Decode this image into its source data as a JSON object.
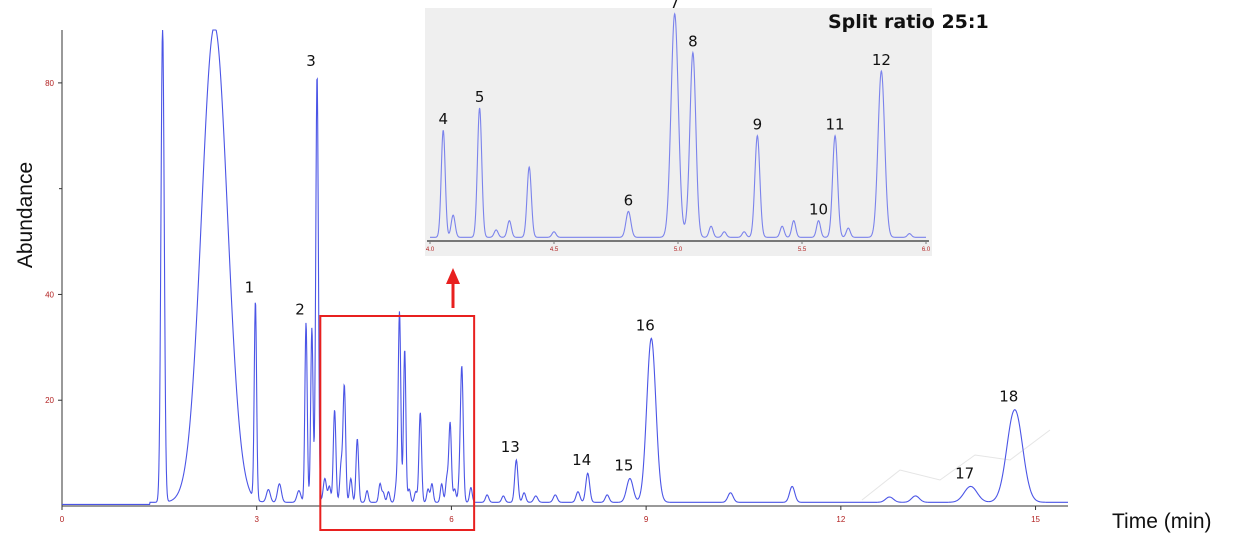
{
  "chart_data": {
    "type": "line",
    "ylabel": "Abundance",
    "xlabel": "Time (min)",
    "xlim": [
      0,
      15.5
    ],
    "ylim": [
      0,
      90
    ],
    "x_ticks": [
      "0",
      "3",
      "6",
      "9",
      "12",
      "15"
    ],
    "y_ticks": [
      "20",
      "40",
      "80"
    ],
    "annotation": "Split ratio 25:1",
    "line_color": "#4b55e6",
    "highlight_color": "#e8201f",
    "highlight_range": [
      3.98,
      6.35
    ],
    "baseline": 0.7,
    "peaks": [
      {
        "t": 1.55,
        "h": 90,
        "w": 0.025
      },
      {
        "t": 2.35,
        "h": 90,
        "w": 0.2
      },
      {
        "t": 2.98,
        "h": 37.5,
        "w": 0.018,
        "label": "1"
      },
      {
        "t": 3.18,
        "h": 2.4,
        "w": 0.03
      },
      {
        "t": 3.35,
        "h": 3.5,
        "w": 0.03
      },
      {
        "t": 3.65,
        "h": 2.2,
        "w": 0.03
      },
      {
        "t": 3.76,
        "h": 34,
        "w": 0.018,
        "label": "2"
      },
      {
        "t": 3.85,
        "h": 33,
        "w": 0.018
      },
      {
        "t": 3.93,
        "h": 81,
        "w": 0.02,
        "label": "3"
      },
      {
        "t": 4.05,
        "h": 4.5,
        "w": 0.025
      },
      {
        "t": 4.12,
        "h": 3,
        "w": 0.02
      },
      {
        "t": 4.2,
        "h": 17.5,
        "w": 0.02
      },
      {
        "t": 4.3,
        "h": 7,
        "w": 0.02
      },
      {
        "t": 4.35,
        "h": 22,
        "w": 0.02
      },
      {
        "t": 4.45,
        "h": 4.5,
        "w": 0.02
      },
      {
        "t": 4.55,
        "h": 12,
        "w": 0.02
      },
      {
        "t": 4.7,
        "h": 2.2,
        "w": 0.02
      },
      {
        "t": 4.9,
        "h": 3.5,
        "w": 0.02
      },
      {
        "t": 4.95,
        "h": 1.8,
        "w": 0.02
      },
      {
        "t": 5.03,
        "h": 2,
        "w": 0.02
      },
      {
        "t": 5.15,
        "h": 3,
        "w": 0.02
      },
      {
        "t": 5.2,
        "h": 36,
        "w": 0.02
      },
      {
        "t": 5.28,
        "h": 29,
        "w": 0.018
      },
      {
        "t": 5.35,
        "h": 2.5,
        "w": 0.02
      },
      {
        "t": 5.45,
        "h": 2,
        "w": 0.02
      },
      {
        "t": 5.52,
        "h": 17,
        "w": 0.02
      },
      {
        "t": 5.64,
        "h": 2.5,
        "w": 0.02
      },
      {
        "t": 5.7,
        "h": 3.5,
        "w": 0.02
      },
      {
        "t": 5.85,
        "h": 3.5,
        "w": 0.02
      },
      {
        "t": 5.93,
        "h": 4.5,
        "w": 0.02
      },
      {
        "t": 5.98,
        "h": 15,
        "w": 0.02
      },
      {
        "t": 6.05,
        "h": 2.5,
        "w": 0.02
      },
      {
        "t": 6.12,
        "h": 2.3,
        "w": 0.02
      },
      {
        "t": 6.16,
        "h": 25.5,
        "w": 0.022
      },
      {
        "t": 6.3,
        "h": 2.8,
        "w": 0.02
      },
      {
        "t": 6.55,
        "h": 1.4,
        "w": 0.025
      },
      {
        "t": 6.8,
        "h": 1.2,
        "w": 0.025
      },
      {
        "t": 7.0,
        "h": 8,
        "w": 0.025,
        "label": "13"
      },
      {
        "t": 7.12,
        "h": 1.8,
        "w": 0.025
      },
      {
        "t": 7.3,
        "h": 1.2,
        "w": 0.03
      },
      {
        "t": 7.6,
        "h": 1.4,
        "w": 0.03
      },
      {
        "t": 7.95,
        "h": 2,
        "w": 0.03
      },
      {
        "t": 8.1,
        "h": 5.5,
        "w": 0.03,
        "label": "14"
      },
      {
        "t": 8.4,
        "h": 1.4,
        "w": 0.03
      },
      {
        "t": 8.75,
        "h": 4.5,
        "w": 0.05,
        "label": "15"
      },
      {
        "t": 9.08,
        "h": 31,
        "w": 0.07,
        "label": "16"
      },
      {
        "t": 10.3,
        "h": 1.8,
        "w": 0.04
      },
      {
        "t": 11.25,
        "h": 3,
        "w": 0.04
      },
      {
        "t": 12.75,
        "h": 1,
        "w": 0.06
      },
      {
        "t": 13.15,
        "h": 1.2,
        "w": 0.06
      },
      {
        "t": 14.0,
        "h": 3,
        "w": 0.1,
        "label": "17"
      },
      {
        "t": 14.68,
        "h": 17.5,
        "w": 0.12,
        "label": "18"
      }
    ],
    "inset": {
      "x_ticks": [
        "4.0",
        "4.5",
        "5.0",
        "5.5",
        "6.0"
      ],
      "xlim": [
        4.0,
        6.4
      ],
      "baseline": 6,
      "background": "#efefef",
      "peaks": [
        {
          "t": 4.08,
          "h": 58,
          "w": 0.012,
          "label": "4"
        },
        {
          "t": 4.14,
          "h": 12,
          "w": 0.012
        },
        {
          "t": 4.3,
          "h": 70,
          "w": 0.013,
          "label": "5"
        },
        {
          "t": 4.4,
          "h": 4,
          "w": 0.012
        },
        {
          "t": 4.48,
          "h": 9,
          "w": 0.012
        },
        {
          "t": 4.6,
          "h": 38,
          "w": 0.013
        },
        {
          "t": 4.75,
          "h": 3,
          "w": 0.012
        },
        {
          "t": 5.2,
          "h": 14,
          "w": 0.015,
          "label": "6"
        },
        {
          "t": 5.48,
          "h": 121,
          "w": 0.022,
          "label": "7"
        },
        {
          "t": 5.55,
          "h": 3,
          "w": 0.012
        },
        {
          "t": 5.59,
          "h": 100,
          "w": 0.018,
          "label": "8"
        },
        {
          "t": 5.7,
          "h": 6,
          "w": 0.012
        },
        {
          "t": 5.78,
          "h": 3,
          "w": 0.012
        },
        {
          "t": 5.9,
          "h": 3,
          "w": 0.012
        },
        {
          "t": 5.98,
          "h": 55,
          "w": 0.015,
          "label": "9"
        },
        {
          "t": 6.13,
          "h": 6,
          "w": 0.012
        },
        {
          "t": 6.2,
          "h": 9,
          "w": 0.012
        },
        {
          "t": 6.35,
          "h": 9,
          "w": 0.012,
          "label": "10"
        },
        {
          "t": 6.45,
          "h": 55,
          "w": 0.015,
          "label": "11"
        },
        {
          "t": 6.53,
          "h": 5,
          "w": 0.012
        },
        {
          "t": 6.73,
          "h": 90,
          "w": 0.02,
          "label": "12"
        },
        {
          "t": 6.9,
          "h": 2,
          "w": 0.012
        }
      ]
    }
  }
}
